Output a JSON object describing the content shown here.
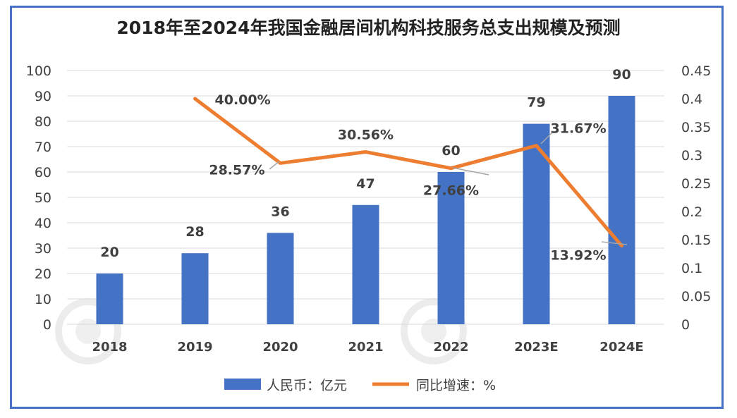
{
  "chart_data": {
    "type": "bar",
    "title": "2018年至2024年我国金融居间机构科技服务总支出规模及预测",
    "categories": [
      "2018",
      "2019",
      "2020",
      "2021",
      "2022",
      "2023E",
      "2024E"
    ],
    "series": [
      {
        "name": "人民币：亿元",
        "type": "bar",
        "axis": "left",
        "values": [
          20,
          28,
          36,
          47,
          60,
          79,
          90
        ],
        "labels": [
          "20",
          "28",
          "36",
          "47",
          "60",
          "79",
          "90"
        ],
        "color": "#4472c4"
      },
      {
        "name": "同比增速：%",
        "type": "line",
        "axis": "right",
        "values": [
          null,
          0.4,
          0.2857,
          0.3056,
          0.2766,
          0.3167,
          0.1392
        ],
        "labels": [
          "",
          "40.00%",
          "28.57%",
          "30.56%",
          "27.66%",
          "31.67%",
          "13.92%"
        ],
        "color": "#ed7d31"
      }
    ],
    "ylim_left": [
      0,
      100
    ],
    "yticks_left": [
      "0",
      "10",
      "20",
      "30",
      "40",
      "50",
      "60",
      "70",
      "80",
      "90",
      "100"
    ],
    "ylim_right": [
      0,
      0.45
    ],
    "yticks_right": [
      "0",
      "0.05",
      "0.1",
      "0.15",
      "0.2",
      "0.25",
      "0.3",
      "0.35",
      "0.4",
      "0.45"
    ],
    "grid": true,
    "legend_position": "bottom"
  },
  "colors": {
    "frame": "#4472c4",
    "grid": "#d9d9d9"
  }
}
